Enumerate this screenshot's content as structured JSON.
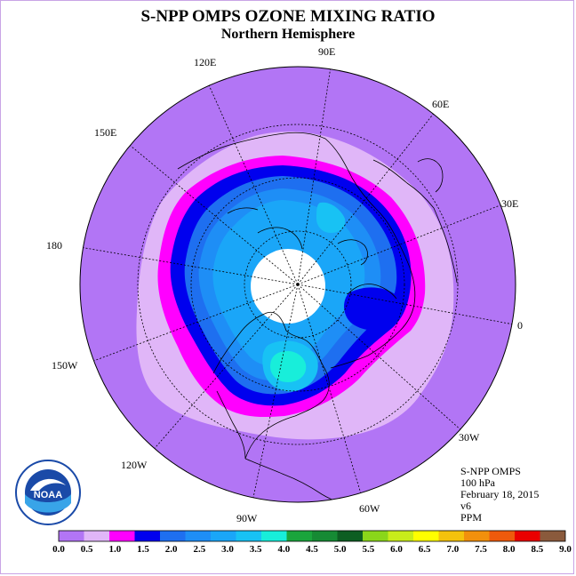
{
  "title": "S-NPP OMPS OZONE MIXING RATIO",
  "subtitle": "Northern Hemisphere",
  "longitude_labels": {
    "e120": "120E",
    "e90": "90E",
    "e60": "60E",
    "e150": "150E",
    "e30": "30E",
    "d180": "180",
    "d0": "0",
    "w150": "150W",
    "w30": "30W",
    "w120": "120W",
    "w60": "60W",
    "w90": "90W"
  },
  "info": {
    "instrument": "S-NPP OMPS",
    "level": "100 hPa",
    "date": "February 18, 2015",
    "version": "v6",
    "units": "PPM"
  },
  "logo": {
    "text": "NOAA"
  },
  "colorbar": {
    "labels": [
      "0.0",
      "0.5",
      "1.0",
      "1.5",
      "2.0",
      "2.5",
      "3.0",
      "3.5",
      "4.0",
      "4.5",
      "5.0",
      "5.5",
      "6.0",
      "6.5",
      "7.0",
      "7.5",
      "8.0",
      "8.5",
      "9.0"
    ],
    "colors": [
      "#b275f5",
      "#e0b6f8",
      "#ff00ff",
      "#0000ee",
      "#1e6ff0",
      "#1e8ef6",
      "#1aa6f8",
      "#18c2f4",
      "#18eeda",
      "#1aa53c",
      "#168a34",
      "#0d5e22",
      "#8ad61a",
      "#c8ec1a",
      "#ffff00",
      "#f4c20c",
      "#f2900c",
      "#ee5a0c",
      "#ea0000",
      "#8a5a3c"
    ]
  },
  "map_colors": {
    "background_band": "#b275f5",
    "band_05_10": "#e0b6f8",
    "band_10_15": "#ff00ff",
    "band_15_20": "#0000ee",
    "band_20_25": "#1e6ff0",
    "band_25_30": "#1e8ef6",
    "band_30_35": "#1aa6f8",
    "band_35_40": "#18c2f4",
    "band_40_45": "#18eeda",
    "missing_data": "#ffffff"
  }
}
